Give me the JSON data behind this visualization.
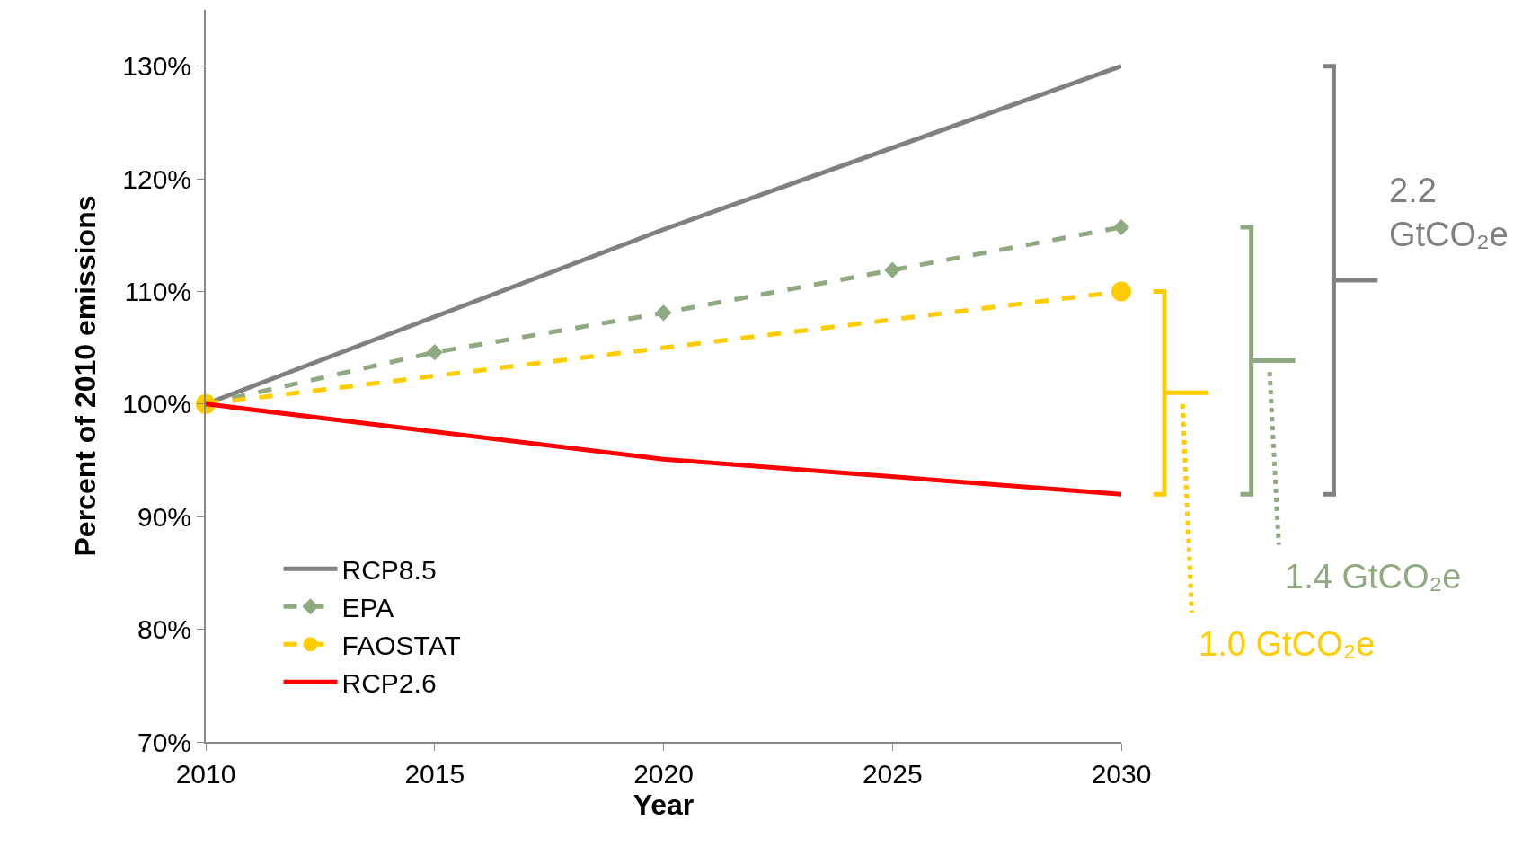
{
  "chart_data": {
    "type": "line",
    "xlabel": "Year",
    "ylabel": "Percent of 2010 emissions",
    "xlim": [
      2010,
      2030
    ],
    "xticks": [
      2010,
      2015,
      2020,
      2025,
      2030
    ],
    "ylim": [
      70,
      135
    ],
    "yticks": [
      {
        "value": 70,
        "label": "70%"
      },
      {
        "value": 80,
        "label": "80%"
      },
      {
        "value": 90,
        "label": "90%"
      },
      {
        "value": 100,
        "label": "100%"
      },
      {
        "value": 110,
        "label": "110%"
      },
      {
        "value": 120,
        "label": "120%"
      },
      {
        "value": 130,
        "label": "130%"
      }
    ],
    "legend": "bottom left",
    "series": [
      {
        "name": "RCP8.5",
        "color": "#808080",
        "x": [
          2010,
          2020,
          2030
        ],
        "values": [
          100,
          115.5,
          130
        ],
        "line_style": "solid",
        "marker": "none"
      },
      {
        "name": "EPA",
        "color": "#8faa80",
        "x": [
          2010,
          2015,
          2020,
          2025,
          2030
        ],
        "values": [
          100,
          104.6,
          108.1,
          111.9,
          115.7
        ],
        "line_style": "dashed",
        "marker": "diamond"
      },
      {
        "name": "FAOSTAT",
        "color": "#ffcc00",
        "x": [
          2010,
          2030
        ],
        "values": [
          100,
          110
        ],
        "line_style": "dashed",
        "marker": "circle"
      },
      {
        "name": "RCP2.6",
        "color": "#ff0000",
        "x": [
          2010,
          2020,
          2030
        ],
        "values": [
          100,
          95.1,
          92
        ],
        "line_style": "solid",
        "marker": "none"
      }
    ],
    "annotations": [
      "2.2\nGtCO₂e",
      "1.4 GtCO₂e",
      "1.0 GtCO₂e"
    ]
  }
}
